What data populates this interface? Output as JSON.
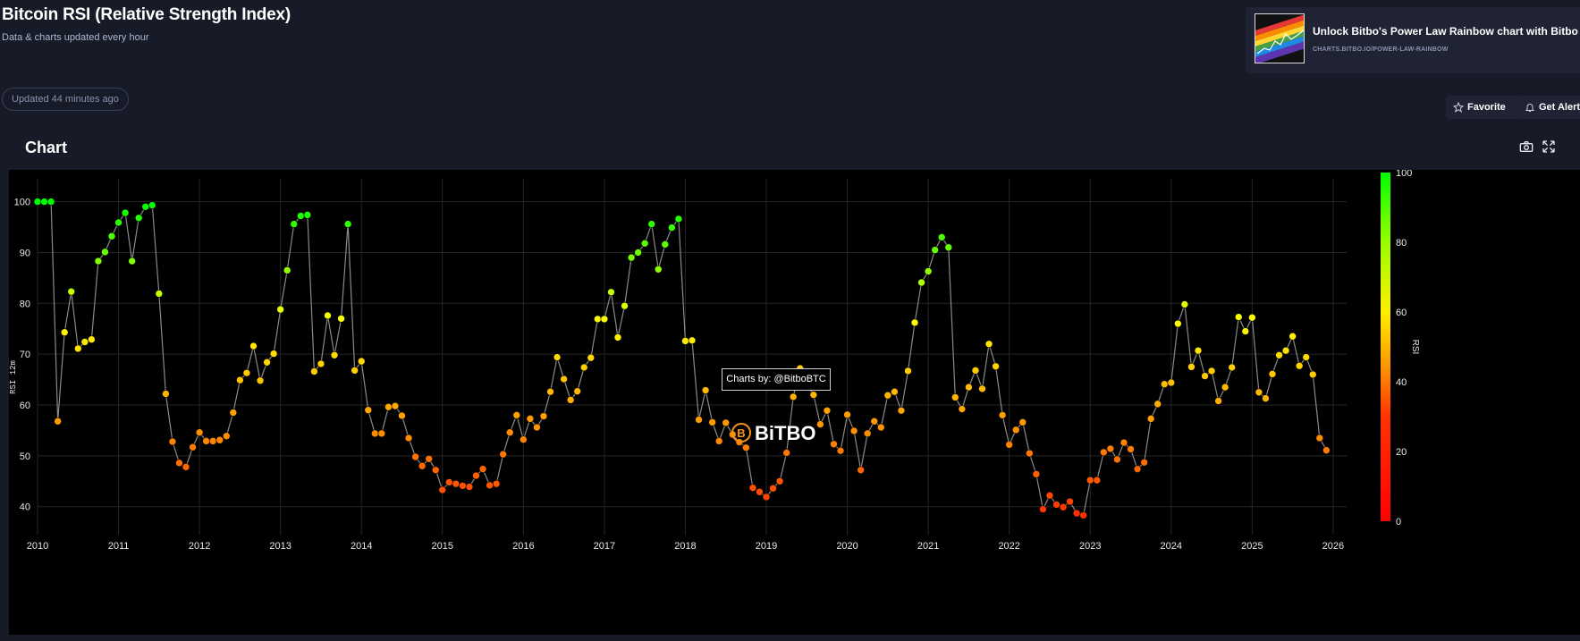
{
  "page": {
    "title": "Bitcoin RSI (Relative Strength Index)",
    "subtitle": "Data & charts updated every hour",
    "updated": "Updated 44 minutes ago",
    "section_title": "Chart"
  },
  "promo": {
    "title": "Unlock Bitbo's Power Law Rainbow chart with Bitbo Pro.",
    "url": "CHARTS.BITBO.IO/POWER-LAW-RAINBOW"
  },
  "actions": {
    "favorite": "Favorite",
    "alert": "Get Alert"
  },
  "icons": [
    "star-icon",
    "bell-icon",
    "camera-icon",
    "expand-icon"
  ],
  "watermark": {
    "text": "BiTBO",
    "tooltip": "Charts by: @BitboBTC"
  },
  "colors": {
    "background": "#171a27",
    "plot_bg": "#000000",
    "line": "#8a8a8a",
    "grid": "#262626",
    "accent": "#f7931a"
  },
  "chart_data": {
    "type": "scatter",
    "title": "",
    "xlabel": "",
    "ylabel": "RSI 12m",
    "colorbar_label": "RSI",
    "colorbar_ticks": [
      0,
      20,
      40,
      60,
      80,
      100
    ],
    "colorscale": [
      "#ff0000",
      "#ff8800",
      "#ffff00",
      "#00ff00"
    ],
    "x_ticks": [
      "2010",
      "2011",
      "2012",
      "2013",
      "2014",
      "2015",
      "2016",
      "2017",
      "2018",
      "2019",
      "2020",
      "2021",
      "2022",
      "2023",
      "2024",
      "2025",
      "2026"
    ],
    "y_ticks": [
      40,
      50,
      60,
      70,
      80,
      90,
      100
    ],
    "xlim": [
      "2010-01",
      "2026-03"
    ],
    "ylim": [
      34.5,
      104.5
    ],
    "grid": true,
    "series": [
      {
        "x": [
          "2010-01",
          "2010-02",
          "2010-03",
          "2010-04",
          "2010-05",
          "2010-06",
          "2010-07",
          "2010-08",
          "2010-09",
          "2010-10",
          "2010-11",
          "2010-12",
          "2011-01",
          "2011-02",
          "2011-03",
          "2011-04",
          "2011-05",
          "2011-06",
          "2011-07",
          "2011-08",
          "2011-09",
          "2011-10",
          "2011-11",
          "2011-12",
          "2012-01",
          "2012-02",
          "2012-03",
          "2012-04",
          "2012-05",
          "2012-06",
          "2012-07",
          "2012-08",
          "2012-09",
          "2012-10",
          "2012-11",
          "2012-12",
          "2013-01",
          "2013-02",
          "2013-03",
          "2013-04",
          "2013-05",
          "2013-06",
          "2013-07",
          "2013-08",
          "2013-09",
          "2013-10",
          "2013-11",
          "2013-12",
          "2014-01",
          "2014-02",
          "2014-03",
          "2014-04",
          "2014-05",
          "2014-06",
          "2014-07",
          "2014-08",
          "2014-09",
          "2014-10",
          "2014-11",
          "2014-12",
          "2015-01",
          "2015-02",
          "2015-03",
          "2015-04",
          "2015-05",
          "2015-06",
          "2015-07",
          "2015-08",
          "2015-09",
          "2015-10",
          "2015-11",
          "2015-12",
          "2016-01",
          "2016-02",
          "2016-03",
          "2016-04",
          "2016-05",
          "2016-06",
          "2016-07",
          "2016-08",
          "2016-09",
          "2016-10",
          "2016-11",
          "2016-12",
          "2017-01",
          "2017-02",
          "2017-03",
          "2017-04",
          "2017-05",
          "2017-06",
          "2017-07",
          "2017-08",
          "2017-09",
          "2017-10",
          "2017-11",
          "2017-12",
          "2018-01",
          "2018-02",
          "2018-03",
          "2018-04",
          "2018-05",
          "2018-06",
          "2018-07",
          "2018-08",
          "2018-09",
          "2018-10",
          "2018-11",
          "2018-12",
          "2019-01",
          "2019-02",
          "2019-03",
          "2019-04",
          "2019-05",
          "2019-06",
          "2019-07",
          "2019-08",
          "2019-09",
          "2019-10",
          "2019-11",
          "2019-12",
          "2020-01",
          "2020-02",
          "2020-03",
          "2020-04",
          "2020-05",
          "2020-06",
          "2020-07",
          "2020-08",
          "2020-09",
          "2020-10",
          "2020-11",
          "2020-12",
          "2021-01",
          "2021-02",
          "2021-03",
          "2021-04",
          "2021-05",
          "2021-06",
          "2021-07",
          "2021-08",
          "2021-09",
          "2021-10",
          "2021-11",
          "2021-12",
          "2022-01",
          "2022-02",
          "2022-03",
          "2022-04",
          "2022-05",
          "2022-06",
          "2022-07",
          "2022-08",
          "2022-09",
          "2022-10",
          "2022-11",
          "2022-12",
          "2023-01",
          "2023-02",
          "2023-03",
          "2023-04",
          "2023-05",
          "2023-06",
          "2023-07",
          "2023-08",
          "2023-09",
          "2023-10",
          "2023-11",
          "2023-12",
          "2024-01",
          "2024-02",
          "2024-03",
          "2024-04",
          "2024-05",
          "2024-06",
          "2024-07",
          "2024-08",
          "2024-09",
          "2024-10",
          "2024-11",
          "2024-12",
          "2025-01",
          "2025-02",
          "2025-03",
          "2025-04",
          "2025-05",
          "2025-06",
          "2025-07",
          "2025-08",
          "2025-09",
          "2025-10",
          "2025-11",
          "2025-12"
        ],
        "y": [
          100,
          100,
          100,
          56.8,
          74.3,
          82.3,
          71.1,
          72.4,
          72.9,
          88.3,
          90.1,
          93.2,
          95.9,
          97.8,
          88.3,
          96.8,
          99,
          99.3,
          81.9,
          62.2,
          52.8,
          48.6,
          47.8,
          51.7,
          54.6,
          52.9,
          52.9,
          53.1,
          53.9,
          58.5,
          64.9,
          66.3,
          71.6,
          64.8,
          68.4,
          70.1,
          78.8,
          86.5,
          95.6,
          97.2,
          97.4,
          66.6,
          68.1,
          77.6,
          69.8,
          77,
          95.6,
          66.8,
          68.6,
          59,
          54.4,
          54.4,
          59.6,
          59.8,
          57.9,
          53.5,
          49.8,
          48,
          49.4,
          47.2,
          43.3,
          44.8,
          44.5,
          44.1,
          43.9,
          46.1,
          47.4,
          44.2,
          44.5,
          50.3,
          54.6,
          58,
          53.2,
          57.3,
          55.6,
          57.8,
          62.6,
          69.4,
          65.1,
          61,
          62.7,
          67.4,
          69.3,
          76.9,
          76.9,
          82.2,
          73.3,
          79.5,
          89,
          90,
          91.8,
          95.6,
          86.7,
          91.6,
          94.9,
          96.6,
          72.6,
          72.7,
          57.1,
          62.9,
          56.6,
          52.9,
          56.5,
          54.2,
          52.7,
          51.6,
          43.7,
          42.9,
          41.9,
          43.6,
          45,
          50.6,
          61.6,
          67.2,
          64.1,
          62,
          56.2,
          58.9,
          52.3,
          51,
          58.1,
          54.9,
          47.2,
          54.4,
          56.8,
          55.6,
          61.9,
          62.6,
          58.9,
          66.7,
          76.2,
          84.1,
          86.3,
          90.5,
          93,
          91,
          61.5,
          59.2,
          63.5,
          66.8,
          63.2,
          72,
          67.6,
          58,
          52.2,
          55.1,
          56.6,
          50.5,
          46.4,
          39.5,
          42.2,
          40.4,
          39.9,
          41,
          38.7,
          38.3,
          45.2,
          45.2,
          50.7,
          51.4,
          49.3,
          52.6,
          51.3,
          47.4,
          48.7,
          57.3,
          60.2,
          64.1,
          64.4,
          76,
          79.8,
          67.5,
          70.7,
          65.7,
          66.7,
          60.8,
          63.5,
          67.4,
          77.3,
          74.5,
          77.2,
          62.5,
          61.3,
          66.1,
          69.8,
          70.7,
          73.5,
          67.7,
          69.4,
          66,
          53.5,
          51.1
        ]
      }
    ]
  }
}
